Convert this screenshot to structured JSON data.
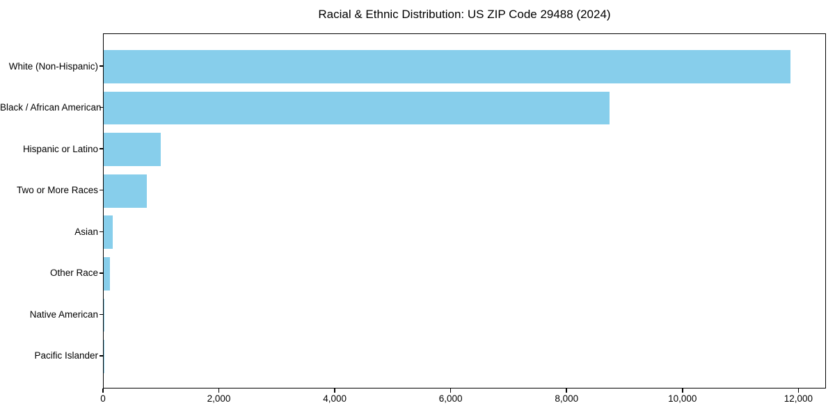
{
  "chart_data": {
    "type": "bar",
    "orientation": "horizontal",
    "title": "Racial & Ethnic Distribution: US ZIP Code 29488 (2024)",
    "categories": [
      "White (Non-Hispanic)",
      "Black / African American",
      "Hispanic or Latino",
      "Two or More Races",
      "Asian",
      "Other Race",
      "Native American",
      "Pacific Islander"
    ],
    "values": [
      11850,
      8730,
      980,
      745,
      160,
      105,
      8,
      3
    ],
    "xlabel": "",
    "ylabel": "",
    "xlim": [
      0,
      12440
    ],
    "x_ticks": [
      {
        "value": 0,
        "label": "0"
      },
      {
        "value": 2000,
        "label": "2,000"
      },
      {
        "value": 4000,
        "label": "4,000"
      },
      {
        "value": 6000,
        "label": "6,000"
      },
      {
        "value": 8000,
        "label": "8,000"
      },
      {
        "value": 10000,
        "label": "10,000"
      },
      {
        "value": 12000,
        "label": "12,000"
      }
    ],
    "grid": false,
    "legend": null,
    "colors": {
      "bar": "#87CEEB",
      "axis": "#000000",
      "text": "#000000",
      "background": "#FFFFFF"
    }
  }
}
